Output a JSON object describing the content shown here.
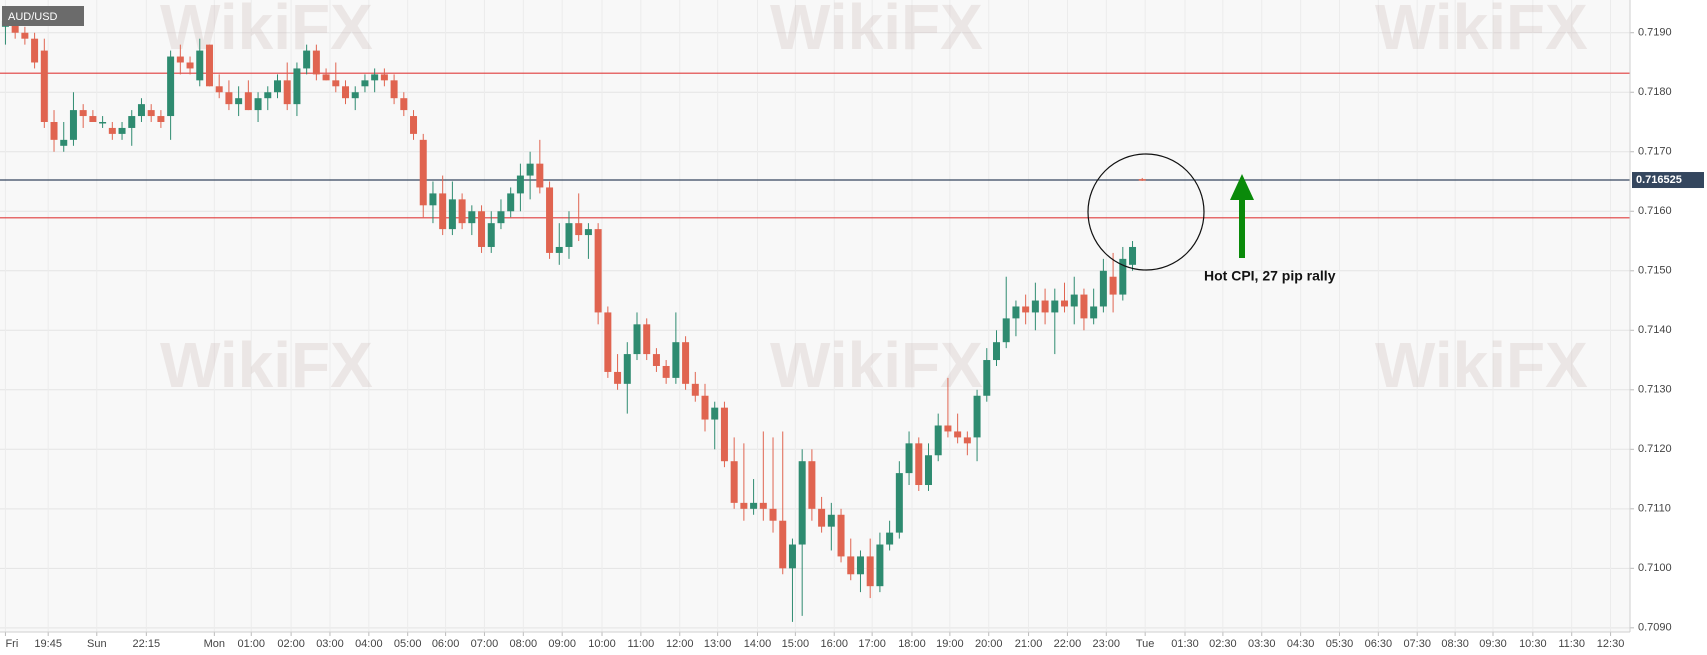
{
  "chart_data": {
    "type": "candlestick",
    "symbol": "AUD/USD",
    "watermark": "WikiFX",
    "annotation": "Hot CPI, 27 pip rally",
    "up_color": "#2e8b70",
    "down_color": "#e06450",
    "grid": true,
    "ylim": [
      0.70893,
      0.71955
    ],
    "yticks": [
      {
        "value": 0.709,
        "label": "0.7090"
      },
      {
        "value": 0.71,
        "label": "0.7100"
      },
      {
        "value": 0.711,
        "label": "0.7110"
      },
      {
        "value": 0.712,
        "label": "0.7120"
      },
      {
        "value": 0.713,
        "label": "0.7130"
      },
      {
        "value": 0.714,
        "label": "0.7140"
      },
      {
        "value": 0.715,
        "label": "0.7150"
      },
      {
        "value": 0.716,
        "label": "0.7160"
      },
      {
        "value": 0.717,
        "label": "0.7170"
      },
      {
        "value": 0.718,
        "label": "0.7180"
      },
      {
        "value": 0.719,
        "label": "0.7190"
      }
    ],
    "xlim": [
      -0.56,
      167.2
    ],
    "xticks": [
      {
        "value": 0,
        "label": "Fri"
      },
      {
        "value": 4.4,
        "label": "19:45"
      },
      {
        "value": 9.4,
        "label": "Sun"
      },
      {
        "value": 14.5,
        "label": "22:15"
      },
      {
        "value": 21.5,
        "label": "Mon"
      },
      {
        "value": 25.3,
        "label": "01:00"
      },
      {
        "value": 29.4,
        "label": "02:00"
      },
      {
        "value": 33.4,
        "label": "03:00"
      },
      {
        "value": 37.4,
        "label": "04:00"
      },
      {
        "value": 41.4,
        "label": "05:00"
      },
      {
        "value": 45.3,
        "label": "06:00"
      },
      {
        "value": 49.3,
        "label": "07:00"
      },
      {
        "value": 53.3,
        "label": "08:00"
      },
      {
        "value": 57.3,
        "label": "09:00"
      },
      {
        "value": 61.4,
        "label": "10:00"
      },
      {
        "value": 65.4,
        "label": "11:00"
      },
      {
        "value": 69.4,
        "label": "12:00"
      },
      {
        "value": 73.3,
        "label": "13:00"
      },
      {
        "value": 77.4,
        "label": "14:00"
      },
      {
        "value": 81.3,
        "label": "15:00"
      },
      {
        "value": 85.3,
        "label": "16:00"
      },
      {
        "value": 89.2,
        "label": "17:00"
      },
      {
        "value": 93.3,
        "label": "18:00"
      },
      {
        "value": 97.2,
        "label": "19:00"
      },
      {
        "value": 101.2,
        "label": "20:00"
      },
      {
        "value": 105.3,
        "label": "21:00"
      },
      {
        "value": 109.3,
        "label": "22:00"
      },
      {
        "value": 113.3,
        "label": "23:00"
      },
      {
        "value": 117.3,
        "label": "Tue"
      },
      {
        "value": 121.4,
        "label": "01:30"
      },
      {
        "value": 125.3,
        "label": "02:30"
      },
      {
        "value": 129.3,
        "label": "03:30"
      },
      {
        "value": 133.3,
        "label": "04:30"
      },
      {
        "value": 137.3,
        "label": "05:30"
      },
      {
        "value": 141.3,
        "label": "06:30"
      },
      {
        "value": 145.3,
        "label": "07:30"
      },
      {
        "value": 149.2,
        "label": "08:30"
      },
      {
        "value": 153.1,
        "label": "09:30"
      },
      {
        "value": 157.2,
        "label": "10:30"
      },
      {
        "value": 161.2,
        "label": "11:30"
      },
      {
        "value": 165.2,
        "label": "12:30"
      }
    ],
    "price_line": {
      "value": 0.716525,
      "color": "#34465e"
    },
    "levels": [
      {
        "value": 0.71832,
        "color": "#e03c3c"
      },
      {
        "value": 0.71589,
        "color": "#e03c3c"
      }
    ],
    "open": [
      0.7191,
      0.7192,
      0.719,
      0.7189,
      0.7187,
      0.7175,
      0.7171,
      0.7172,
      0.7177,
      0.7176,
      0.7175,
      0.7174,
      0.7173,
      0.7174,
      0.7176,
      0.7177,
      0.7176,
      0.7176,
      0.7186,
      0.7185,
      0.7182,
      0.7188,
      0.7181,
      0.718,
      0.7178,
      0.718,
      0.7177,
      0.7179,
      0.718,
      0.7182,
      0.7178,
      0.7184,
      0.7187,
      0.7183,
      0.7182,
      0.7181,
      0.7179,
      0.7181,
      0.7182,
      0.7183,
      0.7182,
      0.7179,
      0.7176,
      0.7172,
      0.7161,
      0.7163,
      0.7157,
      0.7162,
      0.7158,
      0.716,
      0.7154,
      0.7158,
      0.716,
      0.7163,
      0.7166,
      0.7168,
      0.7164,
      0.7153,
      0.7154,
      0.7158,
      0.7156,
      0.7157,
      0.7143,
      0.7133,
      0.7131,
      0.7136,
      0.7141,
      0.7136,
      0.7134,
      0.7132,
      0.7138,
      0.7131,
      0.7129,
      0.7125,
      0.7127,
      0.7118,
      0.7111,
      0.711,
      0.7111,
      0.711,
      0.7108,
      0.71,
      0.7104,
      0.7118,
      0.711,
      0.7107,
      0.7109,
      0.7102,
      0.7099,
      0.7102,
      0.7097,
      0.7104,
      0.7106,
      0.7116,
      0.7121,
      0.7114,
      0.7119,
      0.7124,
      0.7123,
      0.7122,
      0.7122,
      0.7129,
      0.7135,
      0.7138,
      0.7142,
      0.7144,
      0.7143,
      0.7145,
      0.7143,
      0.7145,
      0.7144,
      0.7146,
      0.7142,
      0.7144,
      0.7149,
      0.7146,
      0.7151,
      0.71654
    ],
    "high": [
      0.7193,
      0.7193,
      0.7191,
      0.719,
      0.7189,
      0.7177,
      0.7175,
      0.718,
      0.7178,
      0.7177,
      0.7176,
      0.7175,
      0.7175,
      0.7177,
      0.7179,
      0.7178,
      0.7177,
      0.7187,
      0.7188,
      0.7186,
      0.7189,
      0.7188,
      0.7183,
      0.7182,
      0.7181,
      0.7182,
      0.718,
      0.7181,
      0.7183,
      0.7185,
      0.7185,
      0.7188,
      0.7188,
      0.7184,
      0.7185,
      0.7182,
      0.7181,
      0.7183,
      0.7184,
      0.7184,
      0.7183,
      0.718,
      0.7177,
      0.7173,
      0.7165,
      0.7166,
      0.7165,
      0.7163,
      0.7161,
      0.7161,
      0.716,
      0.7162,
      0.7164,
      0.7168,
      0.717,
      0.7172,
      0.7165,
      0.7158,
      0.716,
      0.7163,
      0.7158,
      0.7158,
      0.7144,
      0.7136,
      0.7138,
      0.7143,
      0.7142,
      0.7137,
      0.7135,
      0.7143,
      0.7139,
      0.7133,
      0.7131,
      0.7128,
      0.7128,
      0.7122,
      0.7121,
      0.7115,
      0.7123,
      0.7122,
      0.7123,
      0.7105,
      0.712,
      0.712,
      0.7112,
      0.7111,
      0.711,
      0.7105,
      0.7103,
      0.7105,
      0.7106,
      0.7108,
      0.7118,
      0.7123,
      0.7122,
      0.7121,
      0.7126,
      0.7132,
      0.7126,
      0.7123,
      0.713,
      0.7137,
      0.714,
      0.7149,
      0.7145,
      0.7146,
      0.7148,
      0.7147,
      0.7147,
      0.7148,
      0.7149,
      0.7147,
      0.7147,
      0.7152,
      0.7153,
      0.7154,
      0.7155,
      0.71656
    ],
    "low": [
      0.7188,
      0.7189,
      0.7188,
      0.7184,
      0.7174,
      0.717,
      0.717,
      0.7171,
      0.7174,
      0.7175,
      0.7174,
      0.7172,
      0.7172,
      0.7171,
      0.7175,
      0.7175,
      0.7174,
      0.7172,
      0.7183,
      0.7183,
      0.7181,
      0.7181,
      0.7179,
      0.7177,
      0.7176,
      0.7177,
      0.7175,
      0.7177,
      0.7179,
      0.7177,
      0.7176,
      0.7183,
      0.7182,
      0.7182,
      0.718,
      0.7178,
      0.7177,
      0.718,
      0.718,
      0.7181,
      0.7178,
      0.7176,
      0.7172,
      0.7159,
      0.7158,
      0.7156,
      0.7156,
      0.7157,
      0.7156,
      0.7153,
      0.7153,
      0.7157,
      0.7159,
      0.716,
      0.7162,
      0.7163,
      0.7152,
      0.7151,
      0.7152,
      0.7155,
      0.7152,
      0.7141,
      0.7132,
      0.713,
      0.7126,
      0.7135,
      0.7135,
      0.7133,
      0.7131,
      0.7131,
      0.713,
      0.7128,
      0.7123,
      0.712,
      0.7117,
      0.711,
      0.7108,
      0.7109,
      0.7108,
      0.7106,
      0.7099,
      0.7091,
      0.7092,
      0.7108,
      0.7106,
      0.7103,
      0.7101,
      0.7098,
      0.7096,
      0.7095,
      0.7096,
      0.7103,
      0.7105,
      0.7114,
      0.7113,
      0.7113,
      0.7118,
      0.7122,
      0.7121,
      0.7119,
      0.7118,
      0.7128,
      0.7134,
      0.7137,
      0.7139,
      0.7141,
      0.714,
      0.7141,
      0.7136,
      0.7143,
      0.7141,
      0.714,
      0.7141,
      0.7143,
      0.7143,
      0.7145,
      0.715,
      0.71651
    ],
    "close": [
      0.7192,
      0.719,
      0.7189,
      0.7185,
      0.7175,
      0.7172,
      0.7172,
      0.7177,
      0.7176,
      0.7175,
      0.7175,
      0.7173,
      0.7174,
      0.7176,
      0.7178,
      0.7176,
      0.7175,
      0.7186,
      0.7185,
      0.7184,
      0.7187,
      0.7181,
      0.718,
      0.7178,
      0.7179,
      0.7177,
      0.7179,
      0.718,
      0.7182,
      0.7178,
      0.7184,
      0.7187,
      0.7183,
      0.7182,
      0.7181,
      0.7179,
      0.718,
      0.7182,
      0.7183,
      0.7182,
      0.7179,
      0.7177,
      0.7173,
      0.7161,
      0.7163,
      0.7157,
      0.7162,
      0.7158,
      0.716,
      0.7154,
      0.7158,
      0.716,
      0.7163,
      0.7166,
      0.7168,
      0.7164,
      0.7153,
      0.7154,
      0.7158,
      0.7156,
      0.7157,
      0.7143,
      0.7133,
      0.7131,
      0.7136,
      0.7141,
      0.7136,
      0.7134,
      0.7132,
      0.7138,
      0.7131,
      0.7129,
      0.7125,
      0.7127,
      0.7118,
      0.7111,
      0.711,
      0.7111,
      0.711,
      0.7108,
      0.71,
      0.7104,
      0.7118,
      0.711,
      0.7107,
      0.7109,
      0.7102,
      0.7099,
      0.7102,
      0.7097,
      0.7104,
      0.7106,
      0.7116,
      0.7121,
      0.7114,
      0.7119,
      0.7124,
      0.7123,
      0.7122,
      0.7121,
      0.7129,
      0.7135,
      0.7138,
      0.7142,
      0.7144,
      0.7143,
      0.7145,
      0.7143,
      0.7145,
      0.7144,
      0.7146,
      0.7142,
      0.7144,
      0.715,
      0.7146,
      0.7152,
      0.7154,
      0.716525
    ]
  }
}
